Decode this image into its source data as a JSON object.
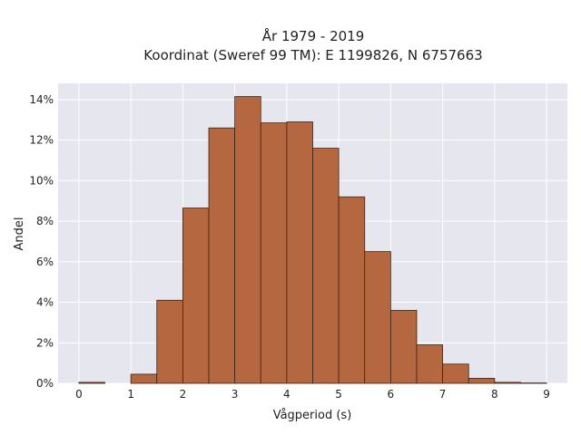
{
  "chart_data": {
    "type": "bar",
    "title_lines": [
      "År 1979 - 2019",
      "Koordinat (Sweref 99 TM): E 1199826, N 6757663"
    ],
    "xlabel": "Vågperiod (s)",
    "ylabel": "Andel",
    "bin_width": 0.5,
    "bin_starts": [
      0,
      0.5,
      1,
      1.5,
      2,
      2.5,
      3,
      3.5,
      4,
      4.5,
      5,
      5.5,
      6,
      6.5,
      7,
      7.5,
      8,
      8.5
    ],
    "values": [
      0.05,
      0,
      0.45,
      4.1,
      8.65,
      12.6,
      14.15,
      12.85,
      12.9,
      11.6,
      9.2,
      6.5,
      3.6,
      1.9,
      0.95,
      0.25,
      0.05,
      0.02
    ],
    "value_unit": "%",
    "xlim": [
      -0.4,
      9.4
    ],
    "ylim": [
      0,
      14.8
    ],
    "xticks": [
      0,
      1,
      2,
      3,
      4,
      5,
      6,
      7,
      8,
      9
    ],
    "xtick_labels": [
      "0",
      "1",
      "2",
      "3",
      "4",
      "5",
      "6",
      "7",
      "8",
      "9"
    ],
    "yticks": [
      0,
      2,
      4,
      6,
      8,
      10,
      12,
      14
    ],
    "ytick_labels": [
      "0%",
      "2%",
      "4%",
      "6%",
      "8%",
      "10%",
      "12%",
      "14%"
    ],
    "grid": true,
    "bar_color": "#b5673f",
    "bar_edge_color": "#3a2418",
    "plot_background": "#e5e6ee"
  }
}
